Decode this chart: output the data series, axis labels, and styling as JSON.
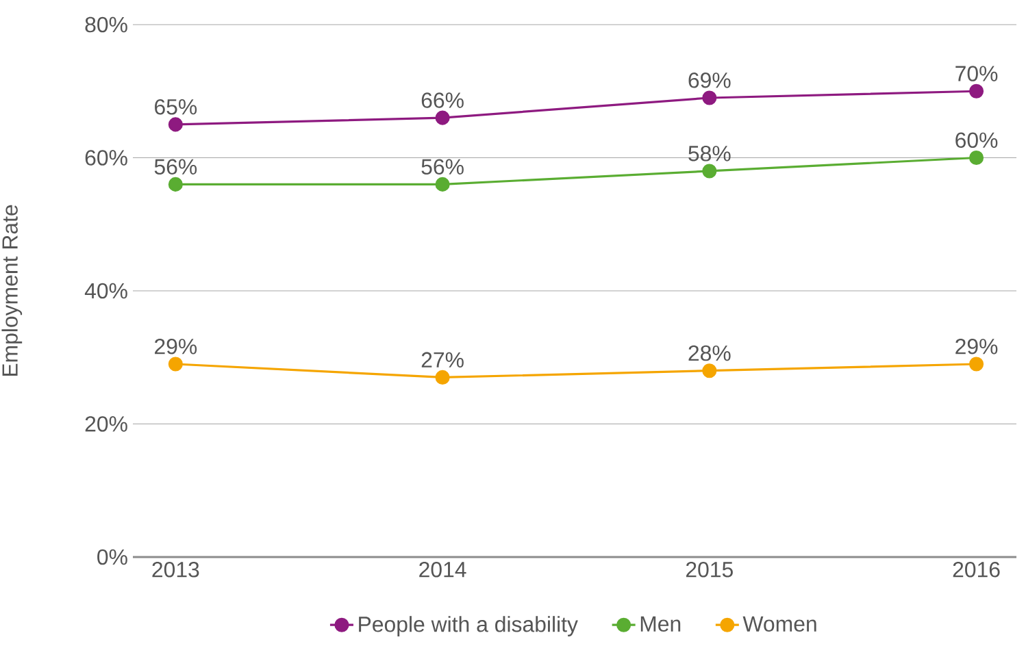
{
  "chart_data": {
    "type": "line",
    "ylabel": "Employment Rate",
    "categories": [
      "2013",
      "2014",
      "2015",
      "2016"
    ],
    "series": [
      {
        "name": "People with a disability",
        "color": "#8e1a80",
        "values": [
          65,
          66,
          69,
          70
        ],
        "value_labels": [
          "65%",
          "66%",
          "69%",
          "70%"
        ]
      },
      {
        "name": "Men",
        "color": "#5aad32",
        "values": [
          56,
          56,
          58,
          60
        ],
        "value_labels": [
          "56%",
          "56%",
          "58%",
          "60%"
        ]
      },
      {
        "name": "Women",
        "color": "#f5a500",
        "values": [
          29,
          27,
          28,
          29
        ],
        "value_labels": [
          "29%",
          "27%",
          "28%",
          "29%"
        ]
      }
    ],
    "ylim": [
      0,
      80
    ],
    "yticks": [
      {
        "value": 0,
        "label": "0%"
      },
      {
        "value": 20,
        "label": "20%"
      },
      {
        "value": 40,
        "label": "40%"
      },
      {
        "value": 60,
        "label": "60%"
      },
      {
        "value": 80,
        "label": "80%"
      }
    ],
    "grid": "y",
    "legend": "bottom",
    "marker": "circle",
    "line_style": "solid"
  }
}
